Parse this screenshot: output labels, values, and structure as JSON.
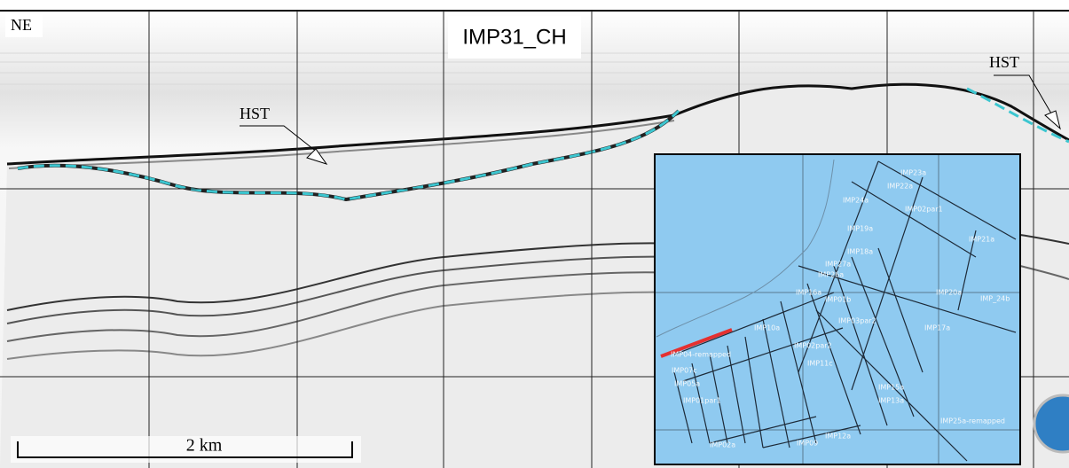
{
  "profile": {
    "corner_label": "NE",
    "title": "IMP31_CH",
    "annotations": [
      "HST",
      "HST"
    ],
    "scale_bar": "2 km"
  },
  "map": {
    "labels": [
      "IMP23a",
      "IMP22a",
      "IMP24a",
      "IMP02par1",
      "IMP19a",
      "IMP21a",
      "IMP18a",
      "IMP27a",
      "IMP26a",
      "IMP20a",
      "IMP_24b",
      "IMP16a",
      "IMP01b",
      "IMP03par2",
      "IMP17a",
      "IMP10a",
      "IMP02par2",
      "IMP11c",
      "IMP04-remapped",
      "IMP07c",
      "IMP05a",
      "IMP15a",
      "IMP13a",
      "IMP12a",
      "IMP25a-remapped",
      "IMP09",
      "IMP01par1",
      "IMP02a"
    ]
  }
}
